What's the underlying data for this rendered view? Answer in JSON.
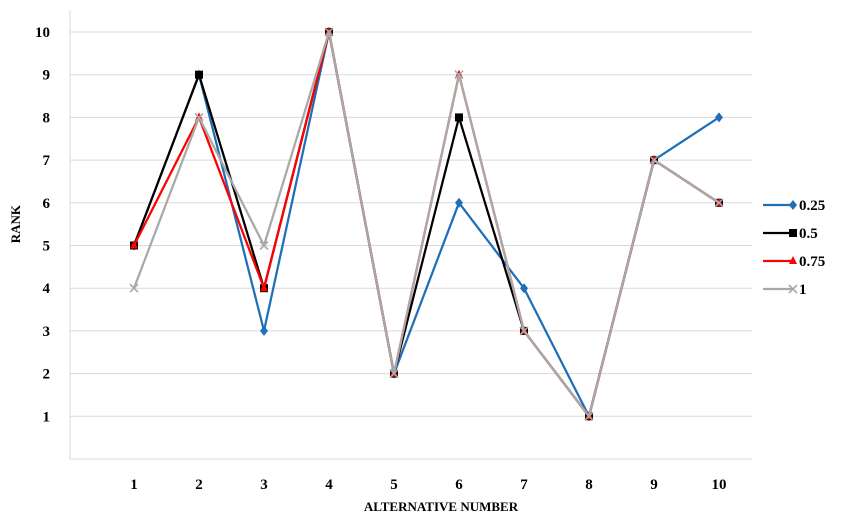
{
  "chart_data": {
    "type": "line",
    "xlabel": "ALTERNATIVE NUMBER",
    "ylabel": "RANK",
    "x": [
      1,
      2,
      3,
      4,
      5,
      6,
      7,
      8,
      9,
      10
    ],
    "ylim": [
      0,
      10
    ],
    "yticks": [
      1,
      2,
      3,
      4,
      5,
      6,
      7,
      8,
      9,
      10
    ],
    "grid": "horizontal",
    "legend_position": "right",
    "series": [
      {
        "name": "0.25",
        "color": "#1f6fb8",
        "marker": "diamond",
        "values": [
          5,
          9,
          3,
          10,
          2,
          6,
          4,
          1,
          7,
          8
        ]
      },
      {
        "name": "0.5",
        "color": "#000000",
        "marker": "square",
        "values": [
          5,
          9,
          4,
          10,
          2,
          8,
          3,
          1,
          7,
          6
        ]
      },
      {
        "name": "0.75",
        "color": "#ff0000",
        "marker": "triangle",
        "values": [
          5,
          8,
          4,
          10,
          2,
          9,
          3,
          1,
          7,
          6
        ]
      },
      {
        "name": "1",
        "color": "#a9a9a9",
        "marker": "x",
        "values": [
          4,
          8,
          5,
          10,
          2,
          9,
          3,
          1,
          7,
          6
        ]
      }
    ]
  }
}
